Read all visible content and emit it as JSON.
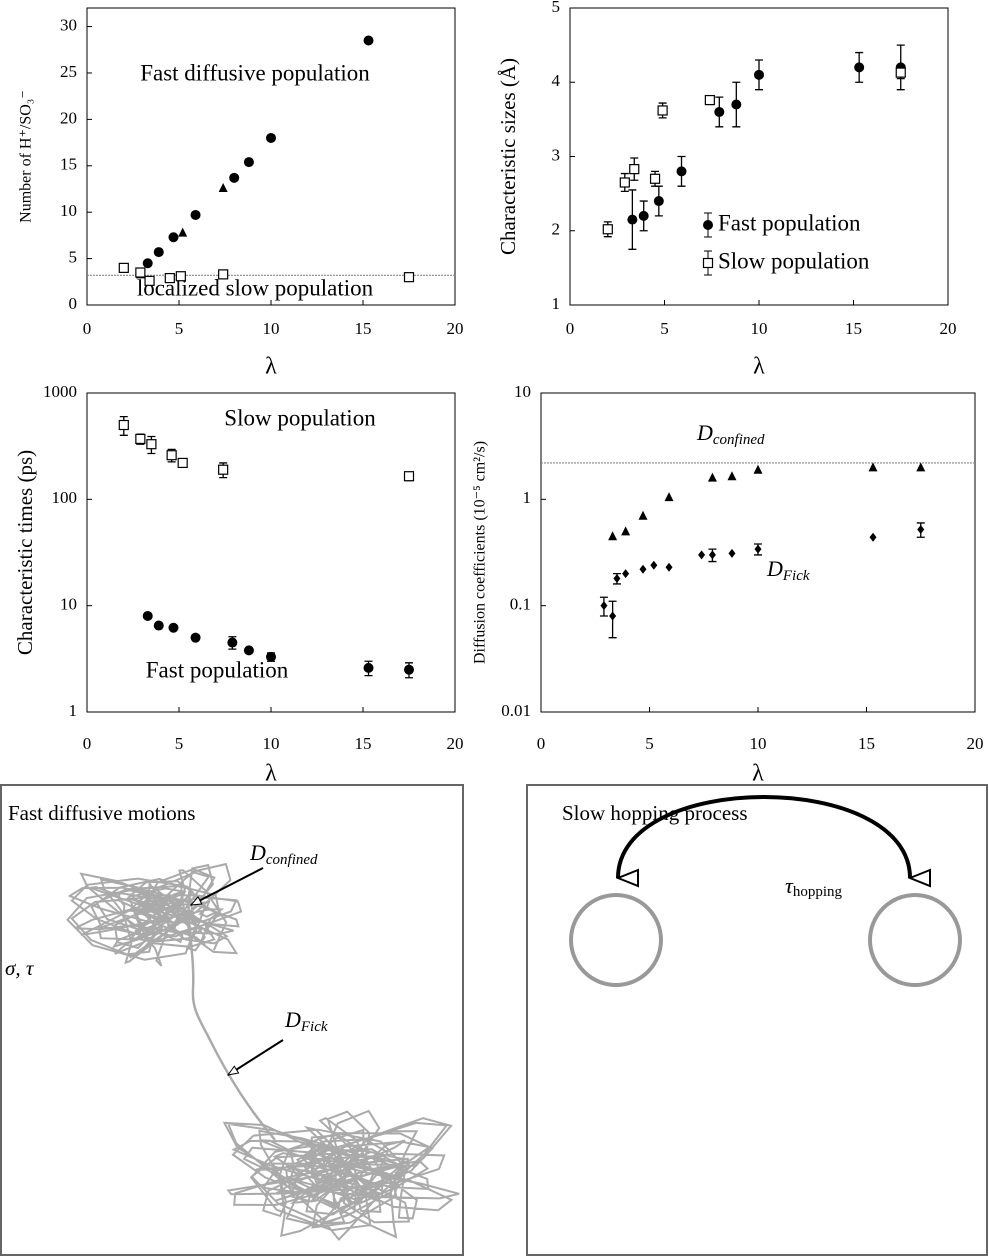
{
  "chart_data": [
    {
      "type": "scatter",
      "x_label": "λ",
      "y_label": "Number of H⁺/SO₃⁻",
      "xlim": [
        0,
        20
      ],
      "xticks": [
        0,
        5,
        10,
        15,
        20
      ],
      "ylim": [
        0,
        32
      ],
      "yticks": [
        0,
        5,
        10,
        15,
        20,
        25,
        30
      ],
      "hline": 3.2,
      "annotations": [
        "Fast diffusive population",
        "localized slow population"
      ],
      "series": [
        {
          "marker": "circle",
          "x": [
            3.3,
            3.9,
            4.7,
            5.9,
            8,
            8.8,
            10,
            15.3
          ],
          "values": [
            4.5,
            5.7,
            7.3,
            9.7,
            13.7,
            15.4,
            18,
            28.5
          ]
        },
        {
          "marker": "triangle",
          "x": [
            2.9,
            5.2,
            7.4
          ],
          "values": [
            3.3,
            7.8,
            12.6
          ]
        },
        {
          "marker": "square",
          "x": [
            2,
            2.9,
            3.4,
            4.5,
            5.1,
            7.4,
            17.5
          ],
          "values": [
            4,
            3.5,
            2.6,
            2.9,
            3.1,
            3.3,
            3.0
          ]
        }
      ]
    },
    {
      "type": "scatter",
      "x_label": "λ",
      "y_label": "Characteristic sizes (Å)",
      "xlim": [
        0,
        20
      ],
      "xticks": [
        0,
        5,
        10,
        15,
        20
      ],
      "ylim": [
        1,
        5
      ],
      "yticks": [
        1,
        2,
        3,
        4,
        5
      ],
      "series": [
        {
          "name": "Fast population",
          "marker": "circle",
          "x": [
            3.3,
            3.9,
            4.7,
            5.9,
            7.9,
            8.8,
            10,
            15.3,
            17.5
          ],
          "values": [
            2.15,
            2.2,
            2.4,
            2.8,
            3.6,
            3.7,
            4.1,
            4.2,
            4.2
          ],
          "errors": [
            0.4,
            0.2,
            0.2,
            0.2,
            0.2,
            0.3,
            0.2,
            0.2,
            0.3
          ]
        },
        {
          "name": "Slow population",
          "marker": "square",
          "x": [
            2,
            2.9,
            3.4,
            4.5,
            4.9,
            7.4,
            17.5
          ],
          "values": [
            2.02,
            2.65,
            2.83,
            2.7,
            3.62,
            3.76,
            4.13
          ],
          "errors": [
            0.1,
            0.12,
            0.15,
            0.1,
            0.1,
            0.06,
            0.08
          ]
        }
      ]
    },
    {
      "type": "scatter",
      "x_label": "λ",
      "y_label": "Characteristic times (ps)",
      "log_y": true,
      "xlim": [
        0,
        20
      ],
      "xticks": [
        0,
        5,
        10,
        15,
        20
      ],
      "ylim": [
        1,
        1000
      ],
      "yticks": [
        1,
        10,
        100,
        1000
      ],
      "annotations": [
        "Slow population",
        "Fast population"
      ],
      "series": [
        {
          "marker": "square",
          "x": [
            2,
            2.9,
            3.5,
            4.6,
            5.2,
            7.4,
            17.5
          ],
          "values": [
            500,
            370,
            330,
            260,
            220,
            190,
            165
          ],
          "errors": [
            100,
            40,
            60,
            35,
            20,
            30,
            15
          ]
        },
        {
          "marker": "circle",
          "x": [
            3.3,
            3.9,
            4.7,
            5.9,
            7.9,
            8.8,
            10,
            15.3,
            17.5
          ],
          "values": [
            8,
            6.5,
            6.2,
            5,
            4.5,
            3.8,
            3.3,
            2.6,
            2.5
          ],
          "errors": [
            null,
            null,
            null,
            null,
            0.6,
            null,
            0.3,
            0.4,
            0.4
          ]
        }
      ]
    },
    {
      "type": "scatter",
      "x_label": "λ",
      "y_label": "Diffusion coefficients (10⁻⁵ cm²/s)",
      "log_y": true,
      "xlim": [
        0,
        20
      ],
      "xticks": [
        0,
        5,
        10,
        15,
        20
      ],
      "ylim": [
        0.01,
        10
      ],
      "yticks": [
        0.01,
        0.1,
        1,
        10
      ],
      "hline": 2.2,
      "math_annotations": [
        {
          "main": "D",
          "sub": "confined"
        },
        {
          "main": "D",
          "sub": "Fick"
        }
      ],
      "series": [
        {
          "marker": "triangle",
          "x": [
            3.3,
            3.9,
            4.7,
            5.9,
            7.9,
            8.8,
            10,
            15.3,
            17.5
          ],
          "values": [
            0.45,
            0.5,
            0.7,
            1.05,
            1.6,
            1.65,
            1.9,
            2.0,
            2.0
          ]
        },
        {
          "marker": "diamond",
          "x": [
            2.9,
            3.3,
            3.5,
            3.9,
            4.7,
            5.2,
            5.9,
            7.4,
            7.9,
            8.8,
            10,
            15.3,
            17.5
          ],
          "values": [
            0.1,
            0.08,
            0.18,
            0.2,
            0.22,
            0.24,
            0.23,
            0.3,
            0.3,
            0.31,
            0.34,
            0.44,
            0.52
          ],
          "errors": [
            0.02,
            0.03,
            0.02,
            null,
            null,
            null,
            null,
            null,
            0.04,
            null,
            0.04,
            null,
            0.08
          ]
        }
      ]
    }
  ],
  "diagrams": {
    "left": {
      "title": "Fast diffusive motions",
      "symbol": "σ, τ",
      "labels": [
        {
          "main": "D",
          "sub": "confined"
        },
        {
          "main": "D",
          "sub": "Fick"
        }
      ]
    },
    "right": {
      "title": "Slow hopping process",
      "label": {
        "main": "τ",
        "sub": "hopping"
      }
    }
  }
}
